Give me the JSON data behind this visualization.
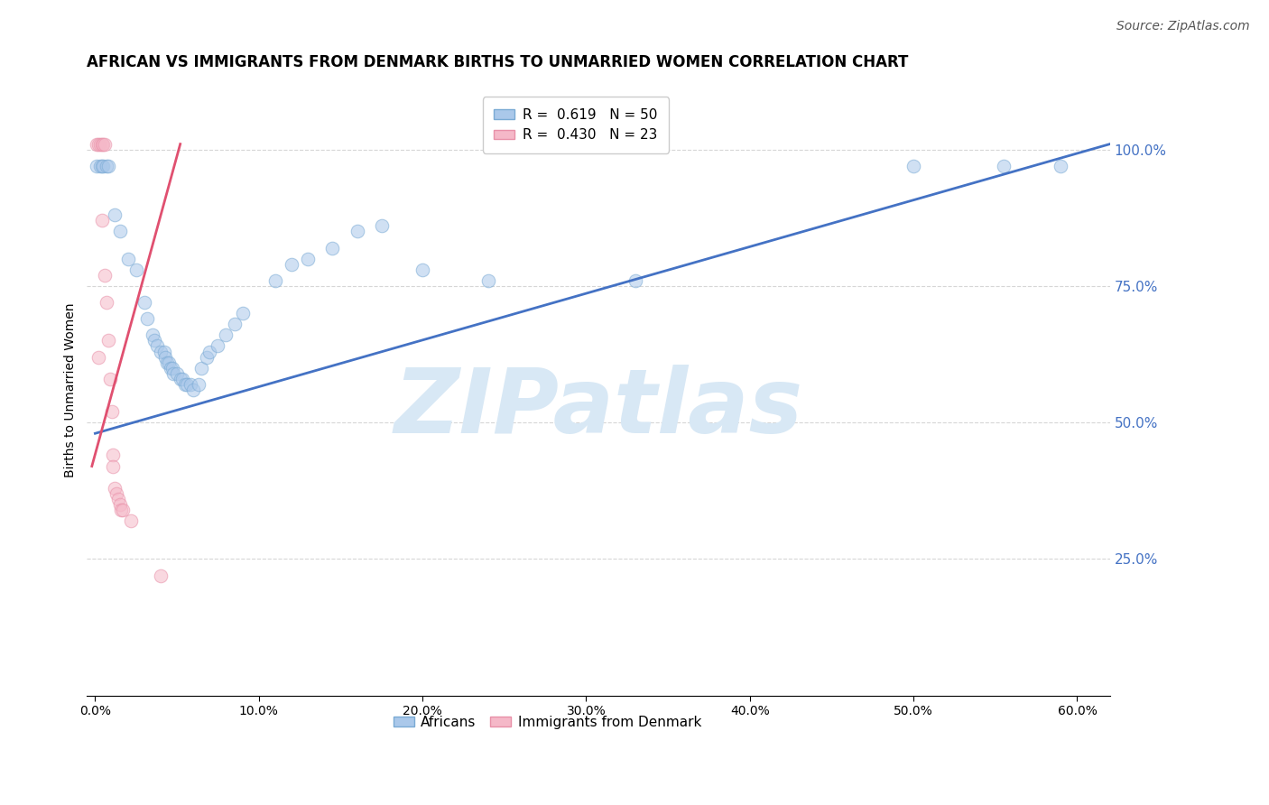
{
  "title": "AFRICAN VS IMMIGRANTS FROM DENMARK BIRTHS TO UNMARRIED WOMEN CORRELATION CHART",
  "source": "Source: ZipAtlas.com",
  "ylabel": "Births to Unmarried Women",
  "watermark": "ZIPatlas",
  "legend_entries": [
    {
      "label": "R =  0.619   N = 50"
    },
    {
      "label": "R =  0.430   N = 23"
    }
  ],
  "legend_labels_bottom": [
    "Africans",
    "Immigrants from Denmark"
  ],
  "xticklabels": [
    "0.0%",
    "10.0%",
    "20.0%",
    "30.0%",
    "40.0%",
    "50.0%",
    "60.0%"
  ],
  "xtick_vals": [
    0.0,
    0.1,
    0.2,
    0.3,
    0.4,
    0.5,
    0.6
  ],
  "ytick_right_labels": [
    "25.0%",
    "50.0%",
    "75.0%",
    "100.0%"
  ],
  "ytick_right_values": [
    0.25,
    0.5,
    0.75,
    1.0
  ],
  "xlim": [
    -0.005,
    0.62
  ],
  "ylim": [
    0.0,
    1.12
  ],
  "blue_scatter": [
    [
      0.001,
      0.97
    ],
    [
      0.003,
      0.97
    ],
    [
      0.004,
      0.97
    ],
    [
      0.005,
      0.97
    ],
    [
      0.007,
      0.97
    ],
    [
      0.008,
      0.97
    ],
    [
      0.012,
      0.88
    ],
    [
      0.015,
      0.85
    ],
    [
      0.02,
      0.8
    ],
    [
      0.025,
      0.78
    ],
    [
      0.03,
      0.72
    ],
    [
      0.032,
      0.69
    ],
    [
      0.035,
      0.66
    ],
    [
      0.036,
      0.65
    ],
    [
      0.038,
      0.64
    ],
    [
      0.04,
      0.63
    ],
    [
      0.042,
      0.63
    ],
    [
      0.043,
      0.62
    ],
    [
      0.044,
      0.61
    ],
    [
      0.045,
      0.61
    ],
    [
      0.046,
      0.6
    ],
    [
      0.047,
      0.6
    ],
    [
      0.048,
      0.59
    ],
    [
      0.05,
      0.59
    ],
    [
      0.052,
      0.58
    ],
    [
      0.053,
      0.58
    ],
    [
      0.055,
      0.57
    ],
    [
      0.056,
      0.57
    ],
    [
      0.058,
      0.57
    ],
    [
      0.06,
      0.56
    ],
    [
      0.063,
      0.57
    ],
    [
      0.065,
      0.6
    ],
    [
      0.068,
      0.62
    ],
    [
      0.07,
      0.63
    ],
    [
      0.075,
      0.64
    ],
    [
      0.08,
      0.66
    ],
    [
      0.085,
      0.68
    ],
    [
      0.09,
      0.7
    ],
    [
      0.11,
      0.76
    ],
    [
      0.12,
      0.79
    ],
    [
      0.13,
      0.8
    ],
    [
      0.145,
      0.82
    ],
    [
      0.16,
      0.85
    ],
    [
      0.175,
      0.86
    ],
    [
      0.2,
      0.78
    ],
    [
      0.24,
      0.76
    ],
    [
      0.33,
      0.76
    ],
    [
      0.5,
      0.97
    ],
    [
      0.555,
      0.97
    ],
    [
      0.59,
      0.97
    ]
  ],
  "pink_scatter": [
    [
      0.001,
      1.01
    ],
    [
      0.002,
      1.01
    ],
    [
      0.003,
      1.01
    ],
    [
      0.004,
      1.01
    ],
    [
      0.005,
      1.01
    ],
    [
      0.006,
      1.01
    ],
    [
      0.004,
      0.87
    ],
    [
      0.006,
      0.77
    ],
    [
      0.007,
      0.72
    ],
    [
      0.008,
      0.65
    ],
    [
      0.009,
      0.58
    ],
    [
      0.01,
      0.52
    ],
    [
      0.011,
      0.44
    ],
    [
      0.011,
      0.42
    ],
    [
      0.012,
      0.38
    ],
    [
      0.013,
      0.37
    ],
    [
      0.014,
      0.36
    ],
    [
      0.015,
      0.35
    ],
    [
      0.016,
      0.34
    ],
    [
      0.017,
      0.34
    ],
    [
      0.022,
      0.32
    ],
    [
      0.04,
      0.22
    ],
    [
      0.002,
      0.62
    ]
  ],
  "blue_line": [
    [
      0.0,
      0.48
    ],
    [
      0.62,
      1.01
    ]
  ],
  "pink_line": [
    [
      -0.002,
      0.42
    ],
    [
      0.052,
      1.01
    ]
  ],
  "scatter_size": 110,
  "scatter_alpha": 0.55,
  "scatter_lw": 0.8,
  "blue_face": "#aac8ea",
  "blue_edge": "#7aaad4",
  "pink_face": "#f5b8c8",
  "pink_edge": "#e890a8",
  "line_blue": "#4472c4",
  "line_pink": "#e05070",
  "line_width": 2.0,
  "grid_color": "#bbbbbb",
  "grid_style": "--",
  "grid_alpha": 0.6,
  "title_fontsize": 12,
  "axis_label_fontsize": 10,
  "tick_fontsize": 10,
  "source_fontsize": 10,
  "legend_fontsize": 11,
  "watermark_color": "#d8e8f5",
  "watermark_fontsize": 72,
  "right_tick_color": "#4472c4",
  "bg": "#ffffff"
}
